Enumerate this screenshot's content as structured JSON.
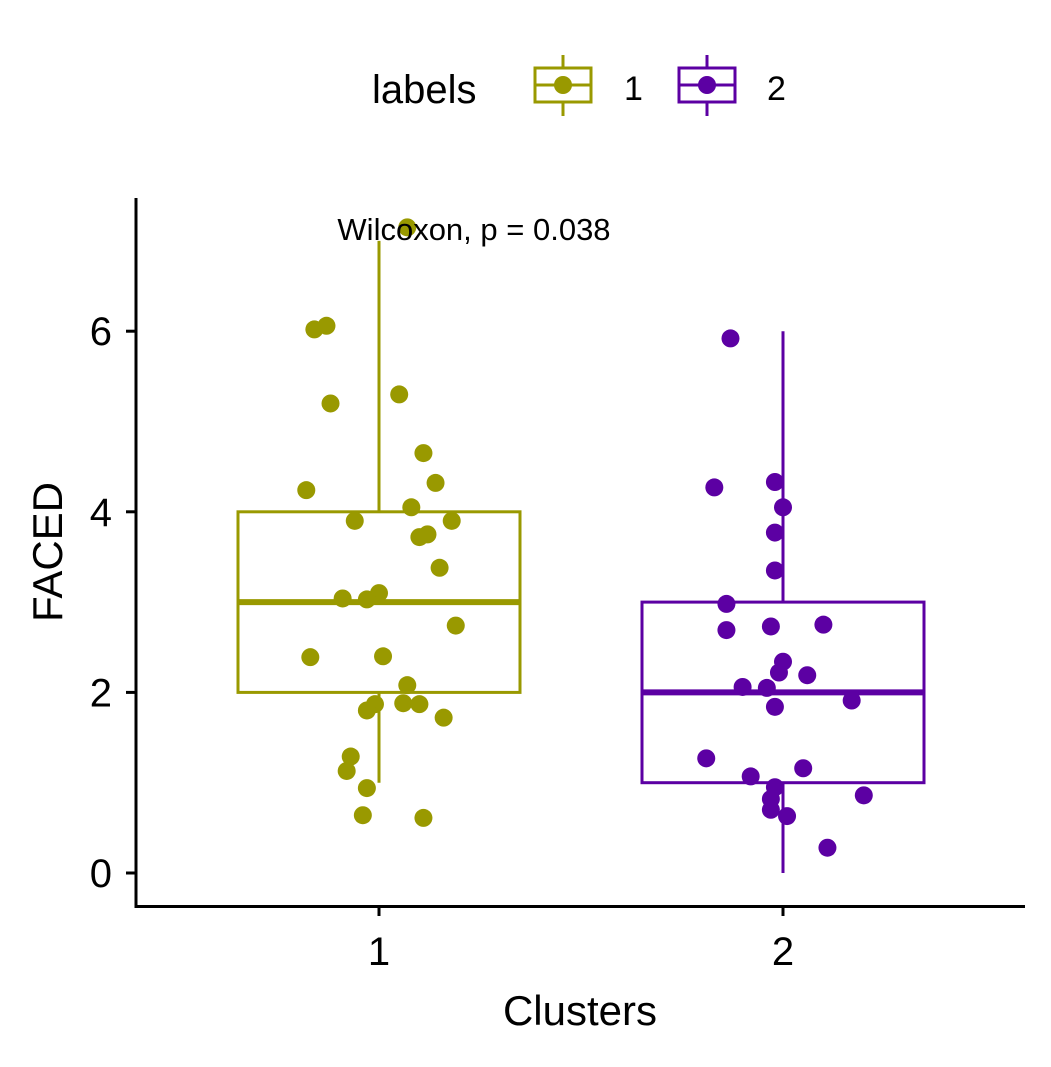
{
  "chart_data": {
    "type": "boxplot",
    "xlabel": "Clusters",
    "ylabel": "FACED",
    "ylim": [
      -0.35,
      7.45
    ],
    "y_ticks": [
      0,
      2,
      4,
      6
    ],
    "categories": [
      "1",
      "2"
    ],
    "legend": {
      "title": "labels",
      "position": "top",
      "entries": [
        "1",
        "2"
      ]
    },
    "annotation": "Wilcoxon, p = 0.038",
    "grid": false,
    "colors": {
      "1": "#999900",
      "2": "#5c00a3"
    },
    "groups": [
      {
        "name": "1",
        "box": {
          "min": 1.0,
          "q1": 2.0,
          "median": 3.0,
          "q3": 4.0,
          "max": 7.0
        },
        "points": [
          {
            "x": 1.07,
            "y": 7.15
          },
          {
            "x": 0.84,
            "y": 6.02
          },
          {
            "x": 0.87,
            "y": 6.06
          },
          {
            "x": 0.88,
            "y": 5.2
          },
          {
            "x": 1.05,
            "y": 5.3
          },
          {
            "x": 1.11,
            "y": 4.65
          },
          {
            "x": 0.82,
            "y": 4.24
          },
          {
            "x": 1.14,
            "y": 4.32
          },
          {
            "x": 1.08,
            "y": 4.05
          },
          {
            "x": 0.94,
            "y": 3.9
          },
          {
            "x": 1.18,
            "y": 3.9
          },
          {
            "x": 1.12,
            "y": 3.75
          },
          {
            "x": 1.1,
            "y": 3.72
          },
          {
            "x": 1.15,
            "y": 3.38
          },
          {
            "x": 1.0,
            "y": 3.1
          },
          {
            "x": 0.91,
            "y": 3.04
          },
          {
            "x": 0.97,
            "y": 3.03
          },
          {
            "x": 1.19,
            "y": 2.74
          },
          {
            "x": 0.83,
            "y": 2.39
          },
          {
            "x": 1.01,
            "y": 2.4
          },
          {
            "x": 1.07,
            "y": 2.08
          },
          {
            "x": 0.99,
            "y": 1.87
          },
          {
            "x": 1.06,
            "y": 1.88
          },
          {
            "x": 1.1,
            "y": 1.87
          },
          {
            "x": 0.97,
            "y": 1.8
          },
          {
            "x": 1.16,
            "y": 1.72
          },
          {
            "x": 0.93,
            "y": 1.29
          },
          {
            "x": 0.92,
            "y": 1.13
          },
          {
            "x": 0.97,
            "y": 0.94
          },
          {
            "x": 0.96,
            "y": 0.64
          },
          {
            "x": 1.11,
            "y": 0.61
          }
        ]
      },
      {
        "name": "2",
        "box": {
          "min": 0.0,
          "q1": 1.0,
          "median": 2.0,
          "q3": 3.0,
          "max": 6.0
        },
        "points": [
          {
            "x": 1.87,
            "y": 5.92
          },
          {
            "x": 1.83,
            "y": 4.27
          },
          {
            "x": 1.98,
            "y": 4.33
          },
          {
            "x": 2.0,
            "y": 4.05
          },
          {
            "x": 1.98,
            "y": 3.77
          },
          {
            "x": 1.98,
            "y": 3.35
          },
          {
            "x": 1.86,
            "y": 2.98
          },
          {
            "x": 1.86,
            "y": 2.69
          },
          {
            "x": 1.97,
            "y": 2.73
          },
          {
            "x": 2.1,
            "y": 2.75
          },
          {
            "x": 2.0,
            "y": 2.34
          },
          {
            "x": 1.99,
            "y": 2.22
          },
          {
            "x": 2.06,
            "y": 2.19
          },
          {
            "x": 1.9,
            "y": 2.06
          },
          {
            "x": 1.96,
            "y": 2.05
          },
          {
            "x": 2.17,
            "y": 1.91
          },
          {
            "x": 1.98,
            "y": 1.84
          },
          {
            "x": 1.81,
            "y": 1.27
          },
          {
            "x": 2.05,
            "y": 1.16
          },
          {
            "x": 1.92,
            "y": 1.07
          },
          {
            "x": 1.98,
            "y": 0.95
          },
          {
            "x": 1.97,
            "y": 0.82
          },
          {
            "x": 2.2,
            "y": 0.86
          },
          {
            "x": 1.97,
            "y": 0.7
          },
          {
            "x": 2.01,
            "y": 0.63
          },
          {
            "x": 2.11,
            "y": 0.28
          }
        ]
      }
    ]
  }
}
